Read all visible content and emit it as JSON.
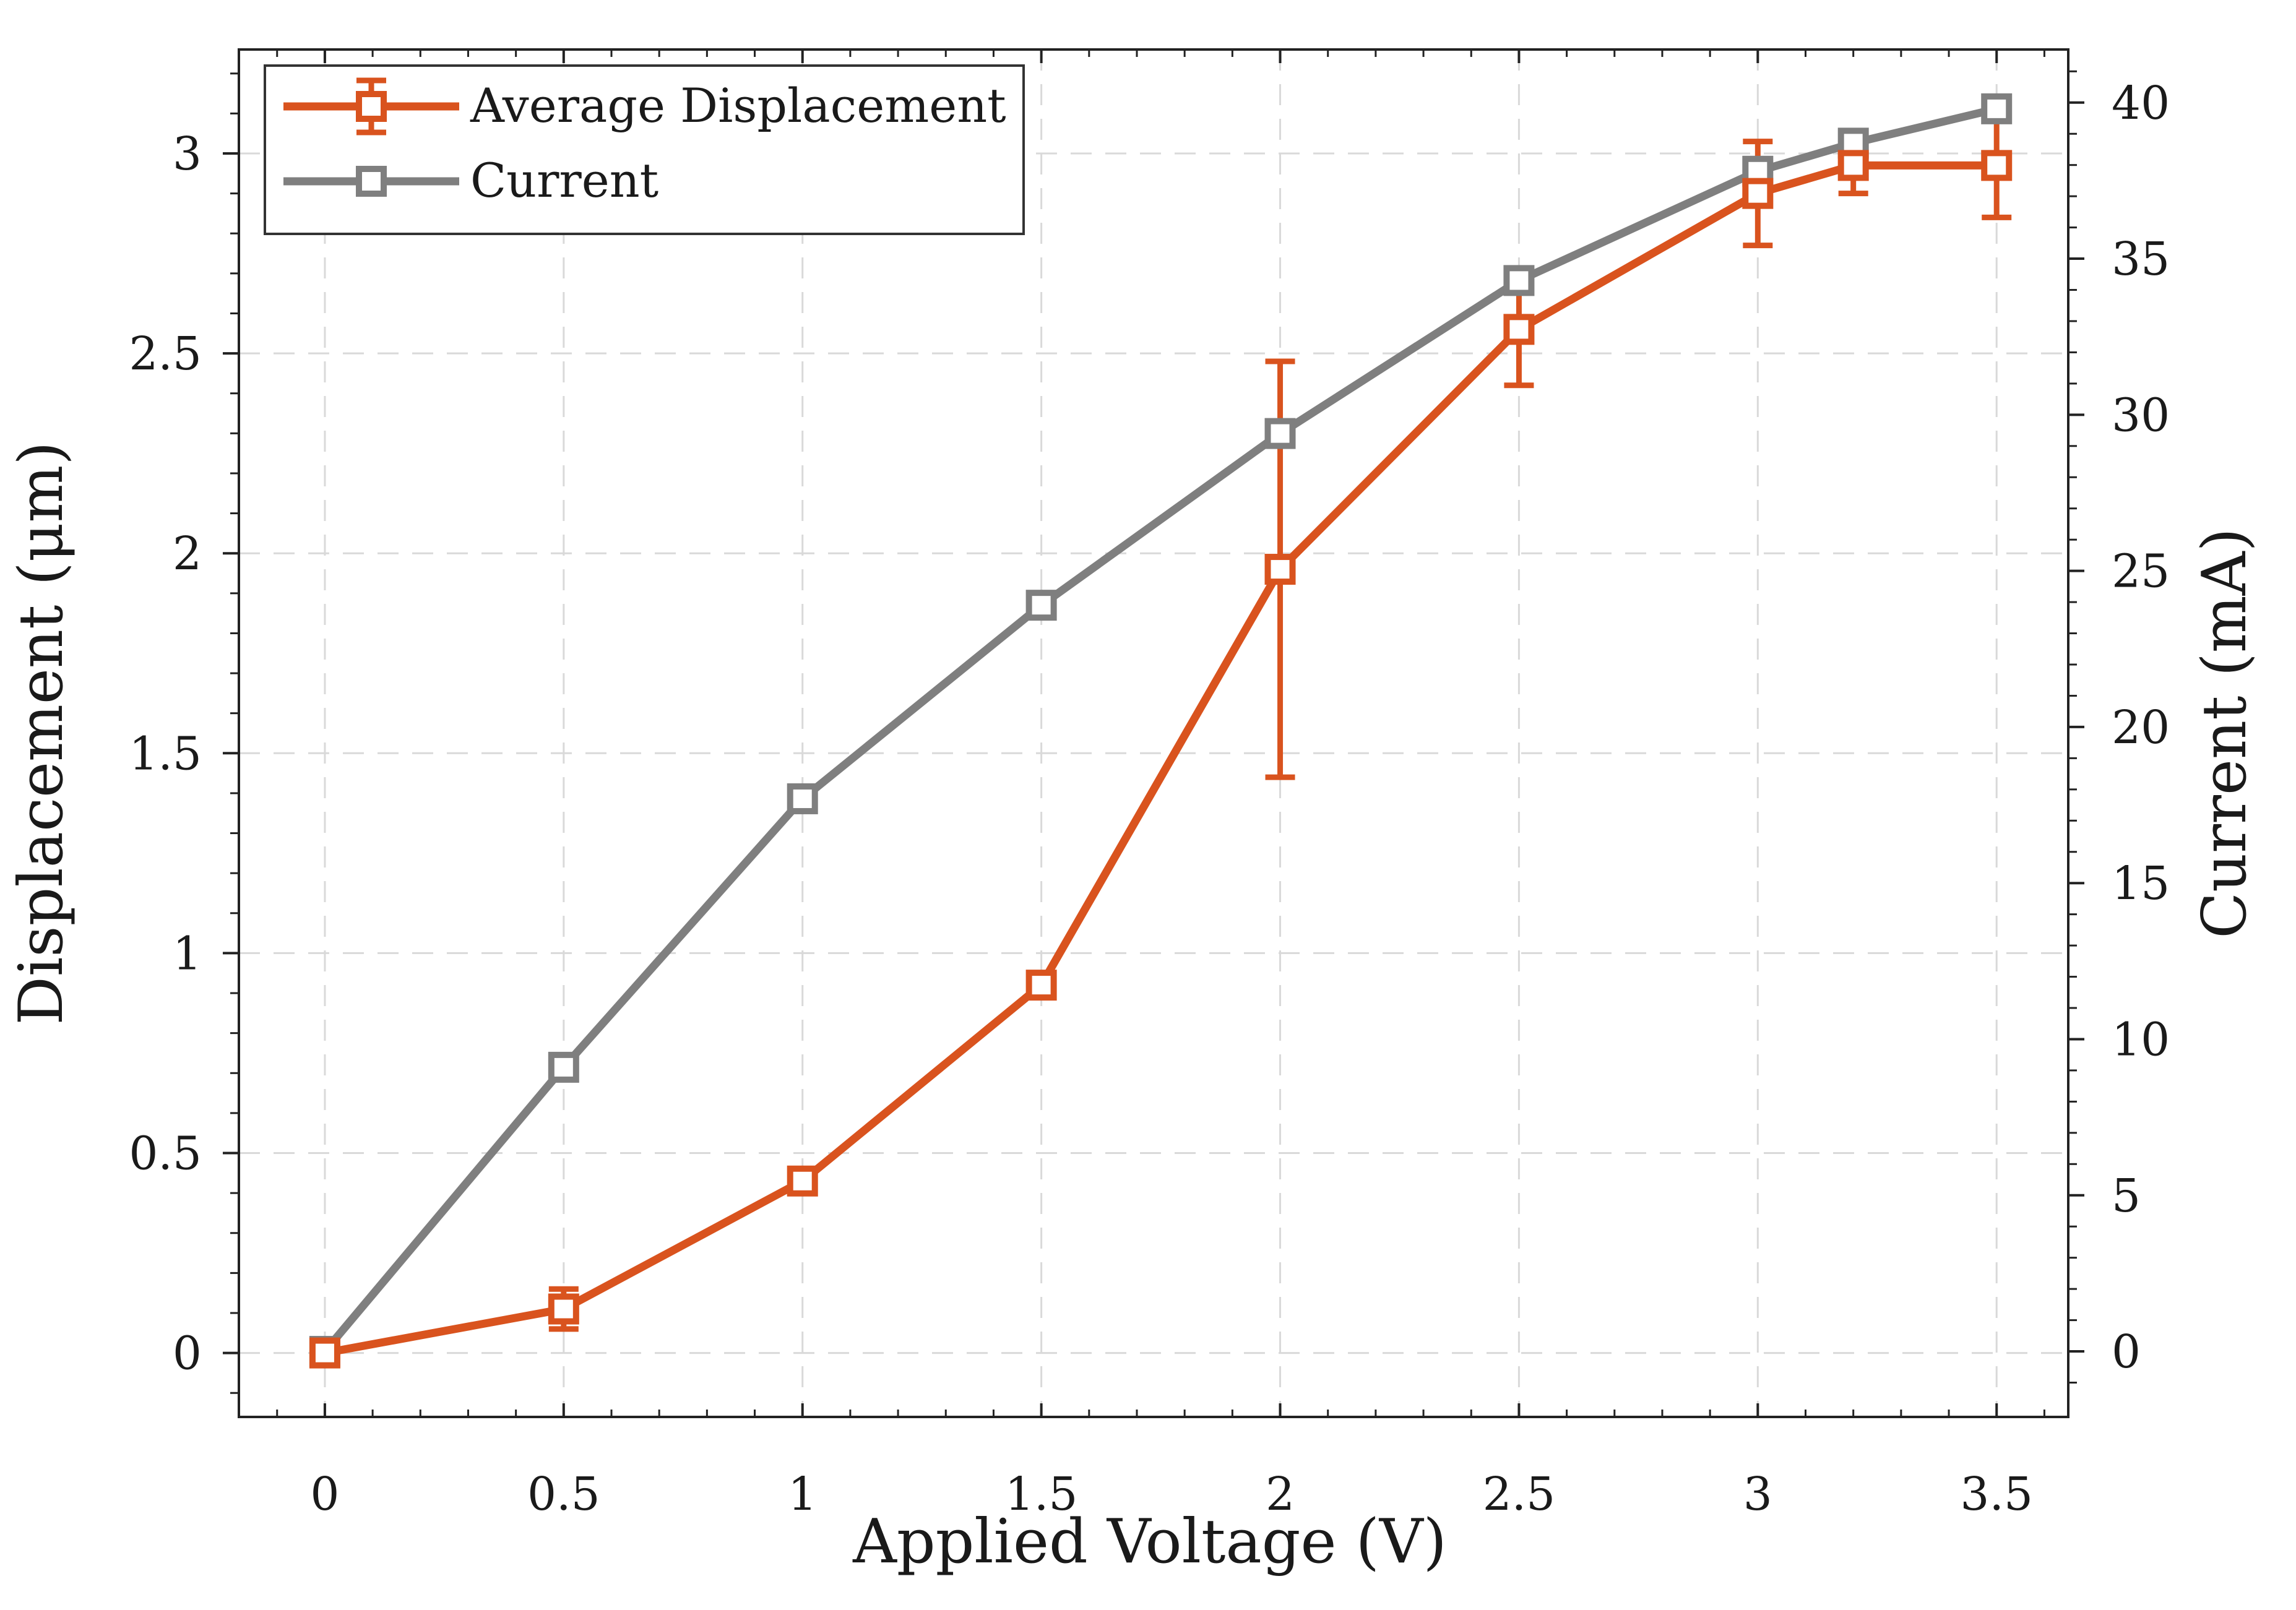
{
  "chart_data": {
    "type": "line",
    "xlabel": "Applied Voltage (V)",
    "ylabel": "Displacement (μm)",
    "y2label": "Current (mA)",
    "xlim": [
      -0.18,
      3.65
    ],
    "ylim": [
      -0.16,
      3.26
    ],
    "y2lim": [
      -2.1,
      41.7
    ],
    "x_ticks": [
      0,
      0.5,
      1,
      1.5,
      2,
      2.5,
      3,
      3.5
    ],
    "x_tick_labels": [
      "0",
      "0.5",
      "1",
      "1.5",
      "2",
      "2.5",
      "3",
      "3.5"
    ],
    "y_ticks": [
      0,
      0.5,
      1,
      1.5,
      2,
      2.5,
      3
    ],
    "y_tick_labels": [
      "0",
      "0.5",
      "1",
      "1.5",
      "2",
      "2.5",
      "3"
    ],
    "y2_ticks": [
      0,
      5,
      10,
      15,
      20,
      25,
      30,
      35,
      40
    ],
    "y2_tick_labels": [
      "0",
      "5",
      "10",
      "15",
      "20",
      "25",
      "30",
      "35",
      "40"
    ],
    "grid": true,
    "legend_position": "top-left",
    "series": [
      {
        "name": "Average Displacement",
        "axis": "left",
        "color": "#d9531e",
        "marker": "open-square",
        "x": [
          0,
          0.5,
          1,
          1.5,
          2,
          2.5,
          3,
          3.2,
          3.5
        ],
        "values": [
          0,
          0.11,
          0.43,
          0.92,
          1.96,
          2.56,
          2.9,
          2.97,
          2.97
        ],
        "error": [
          0,
          0.05,
          0.02,
          0.03,
          0.52,
          0.14,
          0.13,
          0.07,
          0.13
        ]
      },
      {
        "name": "Current",
        "axis": "right",
        "color": "#7f7f7f",
        "marker": "open-square",
        "x": [
          0,
          0.5,
          1,
          1.5,
          2,
          2.5,
          3,
          3.2,
          3.5
        ],
        "values": [
          0,
          9.1,
          17.7,
          23.9,
          29.4,
          34.3,
          37.8,
          38.7,
          39.8
        ]
      }
    ]
  }
}
